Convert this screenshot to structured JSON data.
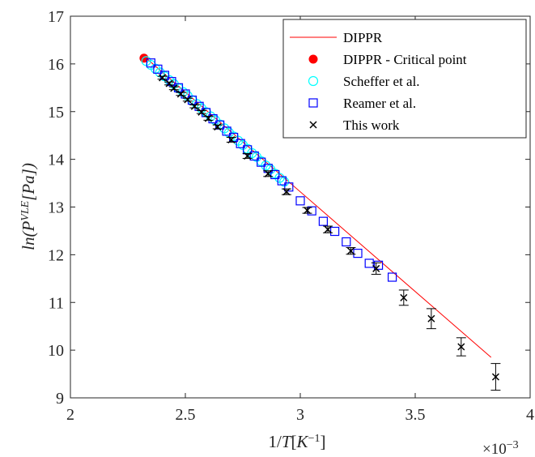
{
  "chart_data": {
    "type": "scatter",
    "xlabel": "1/T[K^{-1}]",
    "ylabel": "ln(P^{VLE}[Pa])",
    "x_multiplier": "×10^{-3}",
    "xlim": [
      2.0,
      4.0
    ],
    "ylim": [
      9,
      17
    ],
    "xticks": [
      2,
      2.5,
      3,
      3.5,
      4
    ],
    "yticks": [
      9,
      10,
      11,
      12,
      13,
      14,
      15,
      16,
      17
    ],
    "grid": false,
    "legend_position": "top-right",
    "series": [
      {
        "name": "DIPPR",
        "kind": "line",
        "color": "#ff0000",
        "x": [
          2.33,
          3.83
        ],
        "y": [
          16.12,
          9.85
        ]
      },
      {
        "name": "DIPPR - Critical point",
        "kind": "filled-circle",
        "color": "#ff0000",
        "x": [
          2.32
        ],
        "y": [
          16.12
        ]
      },
      {
        "name": "Scheffer et al.",
        "kind": "open-circle",
        "color": "#00ffff",
        "x": [
          2.33,
          2.35,
          2.37,
          2.39,
          2.41,
          2.43,
          2.45,
          2.47,
          2.49,
          2.51,
          2.53,
          2.55,
          2.57,
          2.59,
          2.61,
          2.63,
          2.65,
          2.67,
          2.69,
          2.71,
          2.73,
          2.75,
          2.77,
          2.79,
          2.81,
          2.83,
          2.85,
          2.87,
          2.89,
          2.91,
          2.93
        ],
        "y": [
          16.06,
          15.98,
          15.9,
          15.82,
          15.74,
          15.66,
          15.58,
          15.49,
          15.41,
          15.33,
          15.24,
          15.16,
          15.07,
          14.99,
          14.9,
          14.82,
          14.73,
          14.65,
          14.56,
          14.48,
          14.39,
          14.3,
          14.22,
          14.13,
          14.05,
          13.96,
          13.87,
          13.79,
          13.7,
          13.61,
          13.53
        ]
      },
      {
        "name": "Reamer et al.",
        "kind": "open-square",
        "color": "#0000ff",
        "x": [
          2.35,
          2.38,
          2.41,
          2.44,
          2.47,
          2.5,
          2.53,
          2.56,
          2.59,
          2.62,
          2.65,
          2.68,
          2.71,
          2.74,
          2.77,
          2.8,
          2.83,
          2.86,
          2.89,
          2.92,
          2.95,
          3.0,
          3.05,
          3.1,
          3.15,
          3.2,
          3.25,
          3.3,
          3.34,
          3.4
        ],
        "y": [
          16.02,
          15.89,
          15.76,
          15.63,
          15.5,
          15.37,
          15.24,
          15.11,
          14.98,
          14.85,
          14.72,
          14.59,
          14.46,
          14.33,
          14.2,
          14.07,
          13.94,
          13.81,
          13.68,
          13.55,
          13.42,
          13.13,
          12.92,
          12.7,
          12.49,
          12.27,
          12.03,
          11.82,
          11.78,
          11.53
        ]
      },
      {
        "name": "This work",
        "kind": "x-marker-errorbar",
        "color": "#000000",
        "x": [
          2.4,
          2.43,
          2.45,
          2.48,
          2.51,
          2.54,
          2.57,
          2.6,
          2.64,
          2.7,
          2.77,
          2.86,
          2.94,
          3.03,
          3.12,
          3.22,
          3.33,
          3.45,
          3.57,
          3.7,
          3.85
        ],
        "y": [
          15.71,
          15.59,
          15.49,
          15.37,
          15.25,
          15.11,
          14.99,
          14.86,
          14.68,
          14.41,
          14.07,
          13.7,
          13.32,
          12.93,
          12.53,
          12.08,
          11.71,
          11.1,
          10.66,
          10.07,
          9.44
        ],
        "err": [
          0.03,
          0.03,
          0.03,
          0.03,
          0.03,
          0.03,
          0.03,
          0.04,
          0.04,
          0.05,
          0.05,
          0.06,
          0.06,
          0.06,
          0.07,
          0.07,
          0.12,
          0.16,
          0.21,
          0.19,
          0.28
        ]
      }
    ]
  }
}
